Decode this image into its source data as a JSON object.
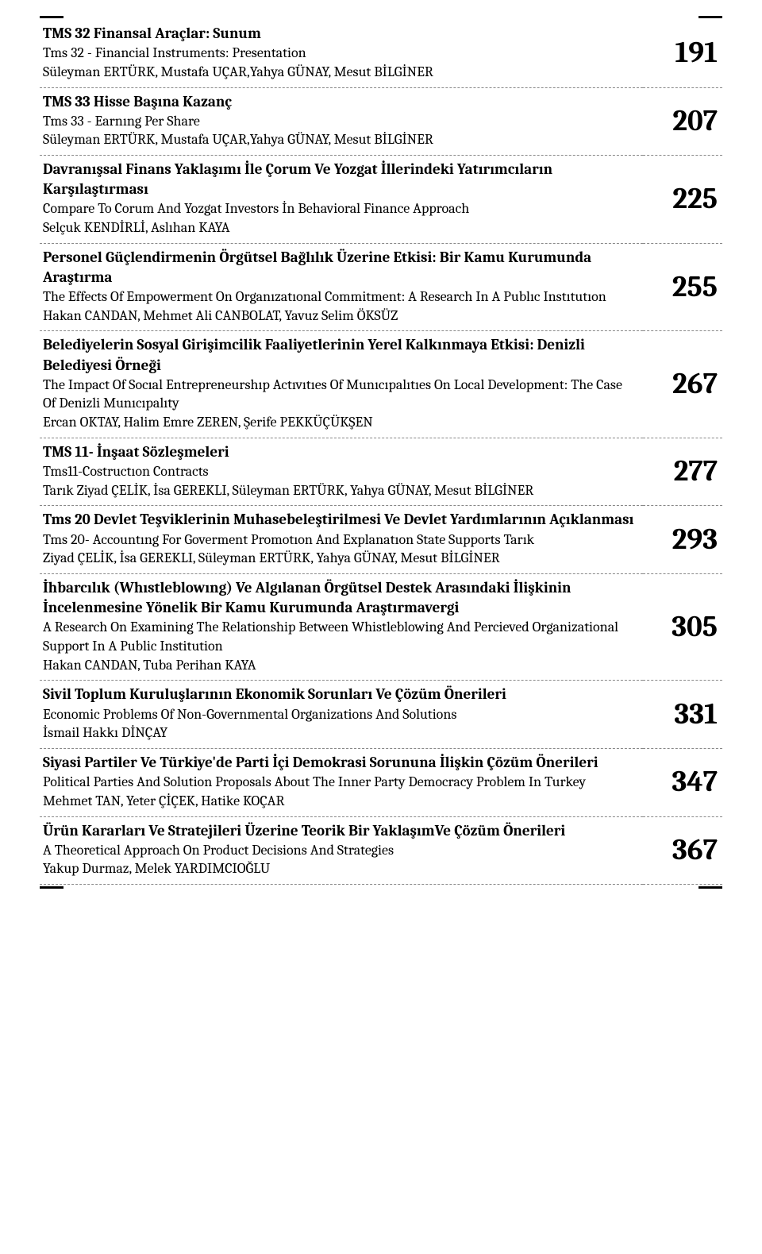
{
  "entries": [
    {
      "title_tr": "TMS 32 Finansal Araçlar: Sunum",
      "title_en": "Tms 32 - Financial Instruments: Presentation",
      "authors": "Süleyman ERTÜRK, Mustafa UÇAR,Yahya GÜNAY, Mesut BİLGİNER",
      "page": "191"
    },
    {
      "title_tr": "TMS 33 Hisse Başına Kazanç",
      "title_en": "Tms 33 - Earnıng Per Share",
      "authors": "Süleyman ERTÜRK, Mustafa UÇAR,Yahya GÜNAY, Mesut BİLGİNER",
      "page": "207"
    },
    {
      "title_tr": "Davranışsal Finans Yaklaşımı İle Çorum Ve Yozgat İllerindeki Yatırımcıların Karşılaştırması",
      "title_en": "Compare To Corum And Yozgat Investors İn Behavioral Finance Approach",
      "authors": "Selçuk KENDİRLİ, Aslıhan KAYA",
      "page": "225"
    },
    {
      "title_tr": "Personel Güçlendirmenin Örgütsel Bağlılık Üzerine Etkisi: Bir Kamu Kurumunda Araştırma",
      "title_en": "The Effects Of Empowerment On Organızatıonal Commitment: A Research In A Publıc Instıtutıon",
      "authors": "Hakan CANDAN, Mehmet Ali CANBOLAT, Yavuz Selim ÖKSÜZ",
      "page": "255"
    },
    {
      "title_tr": "Belediyelerin Sosyal Girişimcilik Faaliyetlerinin Yerel Kalkınmaya Etkisi: Denizli Belediyesi Örneği",
      "title_en": "The Impact Of Socıal Entrepreneurshıp Actıvıtıes Of Munıcıpalıtıes On Local Development: The Case Of Denizli Munıcıpalıty",
      "authors": "Ercan OKTAY, Halim Emre ZEREN, Şerife PEKKÜÇÜKŞEN",
      "page": "267"
    },
    {
      "title_tr": "TMS 11- İnşaat Sözleşmeleri",
      "title_en": "Tms11-Costructıon Contracts",
      "authors": "Tarık Ziyad ÇELİK, İsa GEREKLI, Süleyman ERTÜRK, Yahya GÜNAY, Mesut BİLGİNER",
      "page": "277"
    },
    {
      "title_tr": "Tms 20 Devlet Teşviklerinin Muhasebeleştirilmesi Ve Devlet Yardımlarının Açıklanması",
      "title_en": "Tms 20- Accountıng For Goverment Promotıon And Explanatıon State  Supports Tarık",
      "authors": "Ziyad ÇELİK, İsa GEREKLI, Süleyman ERTÜRK, Yahya GÜNAY, Mesut BİLGİNER",
      "page": "293"
    },
    {
      "title_tr": "İhbarcılık (Whıstleblowıng) Ve Algılanan Örgütsel Destek Arasındaki İlişkinin İncelenmesine Yönelik Bir Kamu Kurumunda Araştırmavergi",
      "title_en": "A Research On Examining The Relationship Between Whistleblowing And Percieved Organizational Support In A Public Institution",
      "authors": "Hakan CANDAN, Tuba Perihan KAYA",
      "page": "305"
    },
    {
      "title_tr": "Sivil Toplum Kuruluşlarının Ekonomik Sorunları Ve Çözüm Önerileri",
      "title_en": "Economic Problems Of Non-Governmental Organizations And Solutions",
      "authors": "İsmail Hakkı DİNÇAY",
      "page": "331"
    },
    {
      "title_tr": "Siyasi Partiler Ve Türkiye'de Parti İçi Demokrasi Sorununa İlişkin Çözüm Önerileri",
      "title_en": "Political Parties And Solution Proposals About The Inner Party Democracy Problem In Turkey",
      "authors": "Mehmet TAN, Yeter ÇİÇEK, Hatike KOÇAR",
      "page": "347"
    },
    {
      "title_tr": "Ürün Kararları Ve Stratejileri Üzerine Teorik Bir YaklaşımVe Çözüm Önerileri",
      "title_en": "A Theoretical Approach On Product Decisions And Strategies",
      "authors": "Yakup Durmaz, Melek YARDIMCIOĞLU",
      "page": "367"
    }
  ]
}
